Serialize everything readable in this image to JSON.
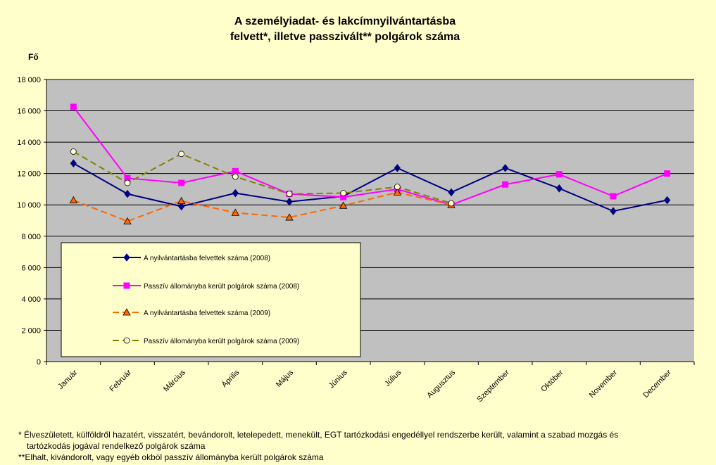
{
  "chart_data": {
    "type": "line",
    "title_line1": "A személyiadat- és lakcímnyilvántartásba",
    "title_line2": "felvett*, illetve passzivált** polgárok száma",
    "ylabel": "Fő",
    "xlabel": "",
    "ylim": [
      0,
      18000
    ],
    "yticks": [
      0,
      2000,
      4000,
      6000,
      8000,
      10000,
      12000,
      14000,
      16000,
      18000
    ],
    "ytick_labels": [
      "0",
      "2 000",
      "4 000",
      "6 000",
      "8 000",
      "10 000",
      "12 000",
      "14 000",
      "16 000",
      "18 000"
    ],
    "grid": true,
    "legend_position": "bottom-left",
    "categories": [
      "Január",
      "Február",
      "Március",
      "Április",
      "Május",
      "Június",
      "Július",
      "Augusztus",
      "Szeptember",
      "Október",
      "November",
      "December"
    ],
    "series": [
      {
        "name": "A nyilvántartásba felvettek száma (2008)",
        "values": [
          12650,
          10700,
          9900,
          10750,
          10200,
          10550,
          12350,
          10800,
          12350,
          11050,
          9600,
          10300
        ],
        "color": "#000080",
        "dash": "solid",
        "marker": "diamond"
      },
      {
        "name": "Passzív állományba került polgárok száma (2008)",
        "values": [
          16250,
          11700,
          11400,
          12150,
          10700,
          10500,
          11000,
          10000,
          11300,
          11950,
          10550,
          12000
        ],
        "color": "#ff00ff",
        "dash": "solid",
        "marker": "square"
      },
      {
        "name": "A nyilvántartásba felvettek száma (2009)",
        "values": [
          10300,
          8950,
          10250,
          9500,
          9200,
          9950,
          10800,
          10000,
          null,
          null,
          null,
          null
        ],
        "color": "#ff6600",
        "dash": "dashed",
        "marker": "triangle"
      },
      {
        "name": "Passzív állományba került polgárok száma (2009)",
        "values": [
          13400,
          11400,
          13250,
          11800,
          10700,
          10750,
          11150,
          10100,
          null,
          null,
          null,
          null
        ],
        "color": "#808000",
        "dash": "dashed",
        "marker": "circle"
      }
    ]
  },
  "footnotes": {
    "line1": "* Élveszületett, külföldről hazatért, visszatért, bevándorolt, letelepedett, menekült, EGT tartózkodási engedéllyel rendszerbe került, valamint a szabad mozgás és",
    "line2": "tartózkodás jogával rendelkező  polgárok száma",
    "line3": "**Elhalt, kivándorolt, vagy egyéb okból passzív állományba került polgárok száma"
  }
}
